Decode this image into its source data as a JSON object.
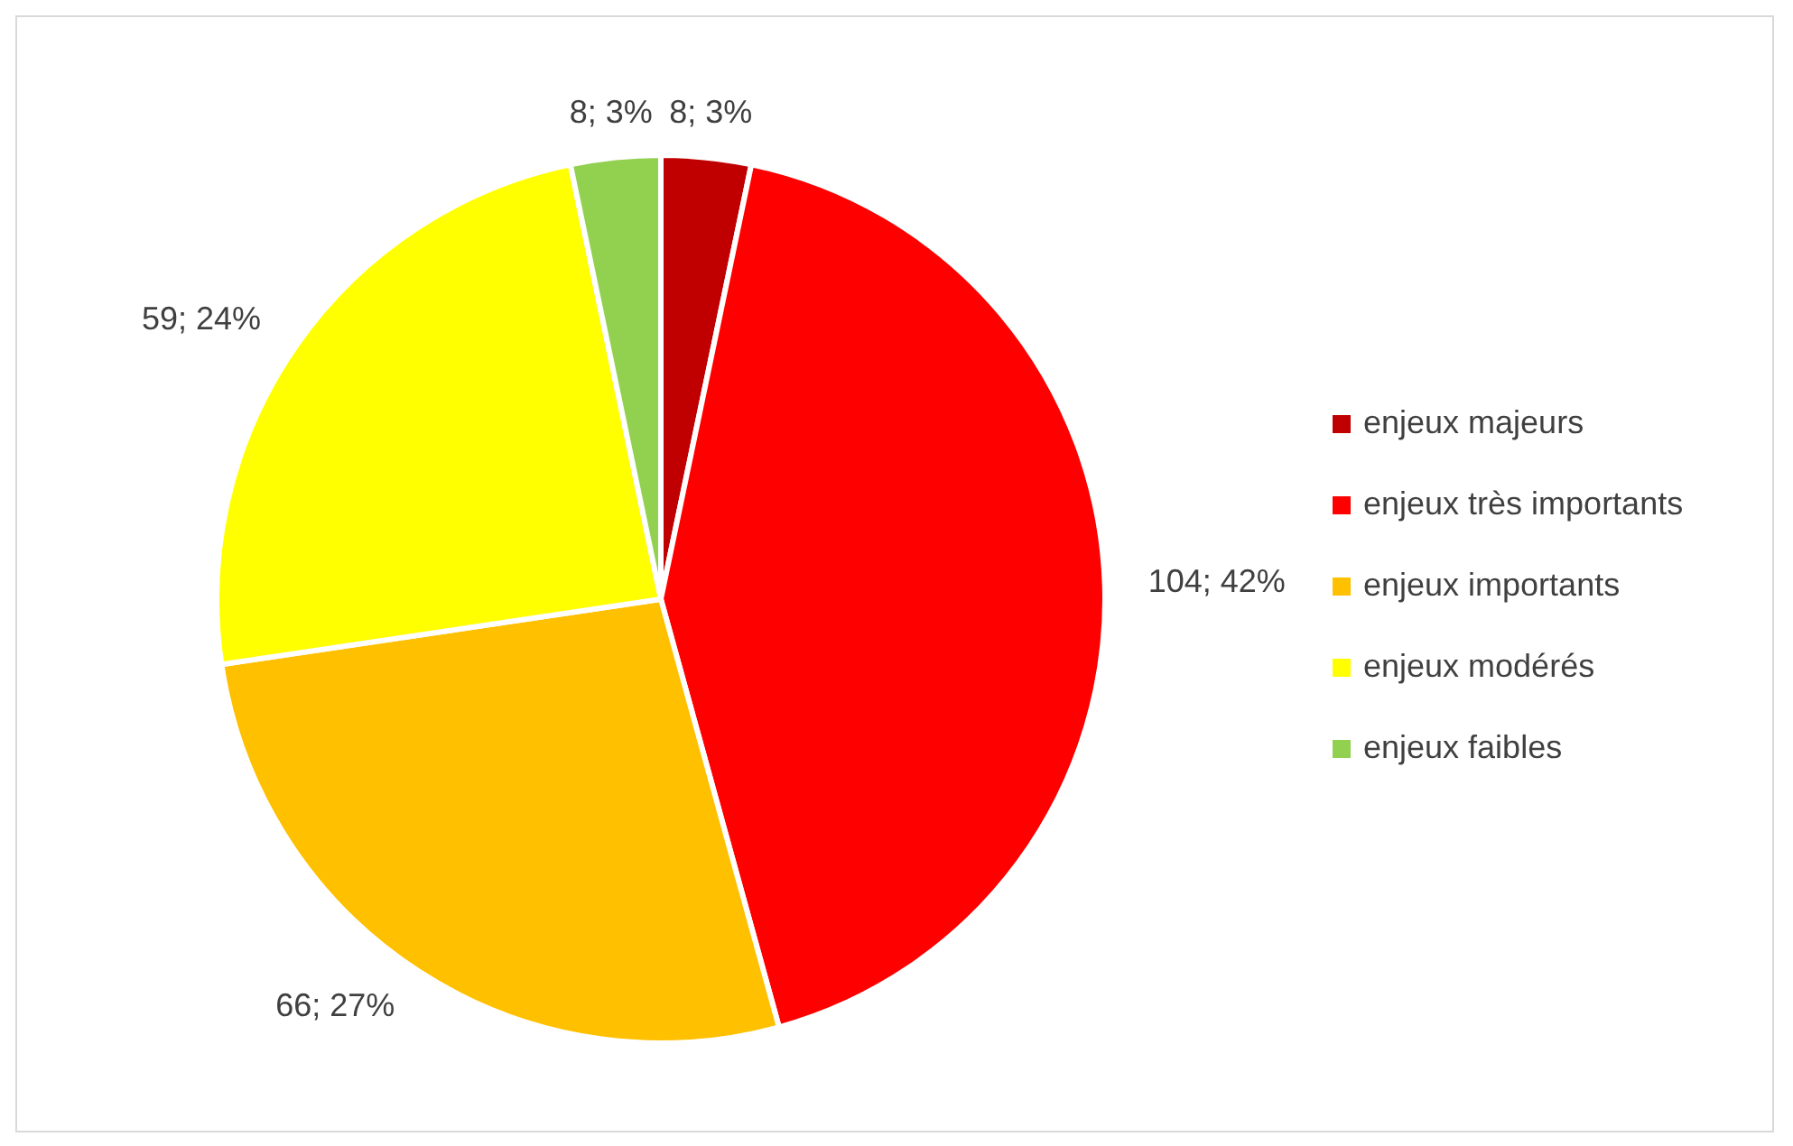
{
  "chart_data": {
    "type": "pie",
    "categories": [
      "enjeux majeurs",
      "enjeux très importants",
      "enjeux importants",
      "enjeux modérés",
      "enjeux faibles"
    ],
    "values": [
      8,
      104,
      66,
      59,
      8
    ],
    "value_labels": [
      "8; 3%",
      "104; 42%",
      "66; 27%",
      "59; 24%",
      "8; 3%"
    ],
    "colors": [
      "#c00000",
      "#ff0000",
      "#ffc000",
      "#ffff00",
      "#92d050"
    ],
    "legend": "right"
  }
}
